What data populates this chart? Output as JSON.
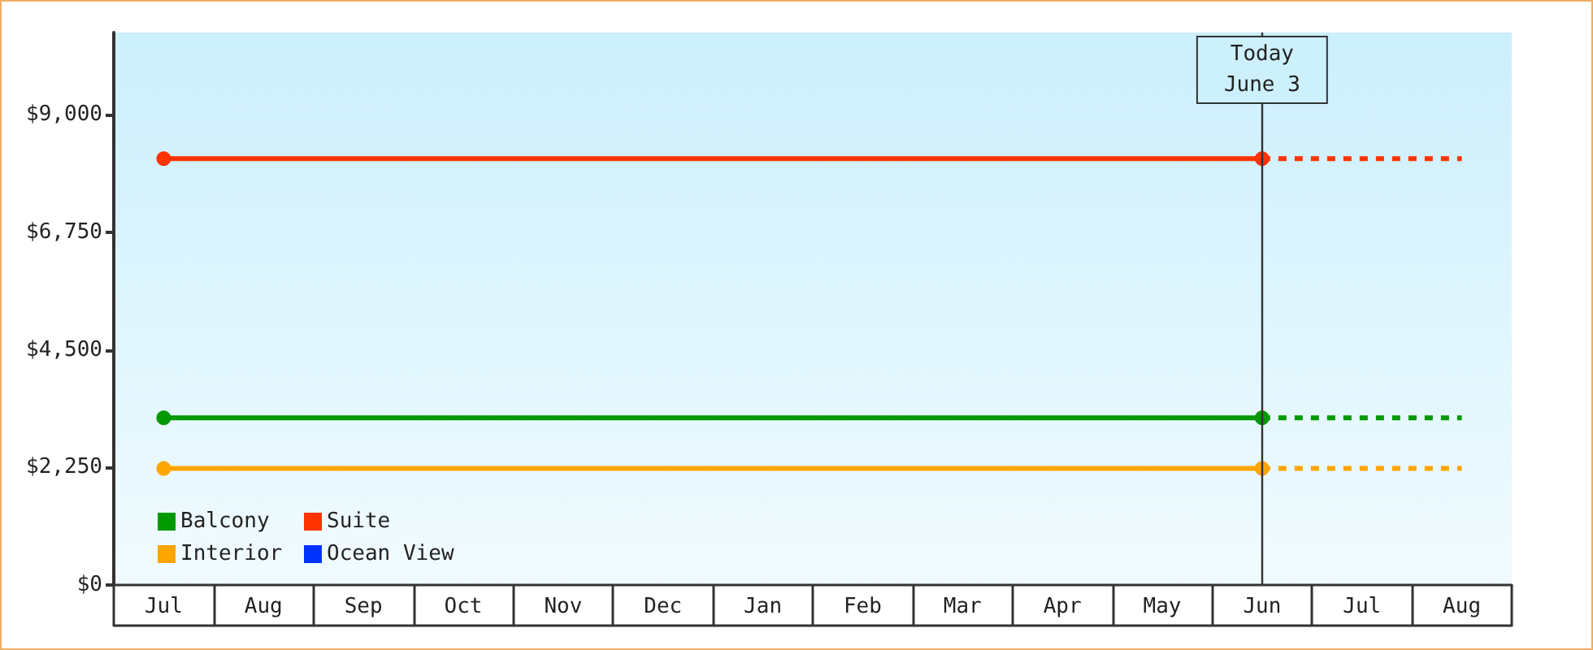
{
  "chart_data": {
    "type": "line",
    "categories": [
      "Jul",
      "Aug",
      "Sep",
      "Oct",
      "Nov",
      "Dec",
      "Jan",
      "Feb",
      "Mar",
      "Apr",
      "May",
      "Jun",
      "Jul",
      "Aug"
    ],
    "ylim": [
      0,
      10575
    ],
    "yticks": [
      {
        "value": 0,
        "label": "$0"
      },
      {
        "value": 2250,
        "label": "$2,250"
      },
      {
        "value": 4500,
        "label": "$4,500"
      },
      {
        "value": 6750,
        "label": "$6,750"
      },
      {
        "value": 9000,
        "label": "$9,000"
      }
    ],
    "grid": false,
    "legend": "bottom left",
    "marker": "circle",
    "line_style": "solid",
    "series": [
      {
        "name": "Balcony",
        "color": "#009900",
        "x": [
          "Jul",
          "Jun"
        ],
        "values": [
          3200,
          3200
        ]
      },
      {
        "name": "Suite",
        "color": "#ff3300",
        "x": [
          "Jul",
          "Jun"
        ],
        "values": [
          8160,
          8160
        ]
      },
      {
        "name": "Interior",
        "color": "#ffa500",
        "x": [
          "Jul",
          "Jun"
        ],
        "values": [
          2230,
          2230
        ]
      },
      {
        "name": "Ocean View",
        "color": "#0033ff",
        "values": [
          null,
          null,
          null,
          null,
          null,
          null,
          null,
          null,
          null,
          null,
          null,
          null,
          null,
          null
        ]
      },
      {
        "color": "#009900",
        "values": [
          null,
          null,
          null,
          null,
          null,
          null,
          null,
          null,
          null,
          null,
          null,
          3200,
          3200,
          3200
        ],
        "marker": "none",
        "line_style": "dotted"
      },
      {
        "color": "#ff3300",
        "values": [
          null,
          null,
          null,
          null,
          null,
          null,
          null,
          null,
          null,
          null,
          null,
          8160,
          8160,
          8160
        ],
        "marker": "none",
        "line_style": "dotted"
      },
      {
        "color": "#ffa500",
        "values": [
          null,
          null,
          null,
          null,
          null,
          null,
          null,
          null,
          null,
          null,
          null,
          2230,
          2230,
          2230
        ],
        "marker": "none",
        "line_style": "dotted"
      }
    ],
    "ref_lines": [
      {
        "axis": "x",
        "value": "Jun",
        "label": "Today\nJune 3",
        "color": "#333333"
      }
    ]
  }
}
